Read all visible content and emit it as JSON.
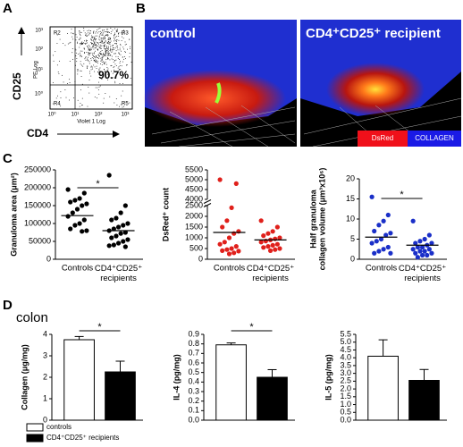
{
  "panel_labels": [
    "A",
    "B",
    "C",
    "D"
  ],
  "flow": {
    "y_marker": "CD25",
    "x_marker": "CD4",
    "y_axis": "PE Log",
    "x_axis": "Violet 1 Log",
    "ticks": [
      "10⁰",
      "10¹",
      "10²",
      "10³"
    ],
    "regions": [
      "R2",
      "R3",
      "R4",
      "R5"
    ],
    "percent": "90.7%"
  },
  "images": {
    "left": "control",
    "right": "CD4⁺CD25⁺ recipient",
    "legend": [
      "DsRed",
      "COLLAGEN"
    ]
  },
  "colon_label": "colon",
  "bar_legend": [
    {
      "name": "controls",
      "color": "#ffffff"
    },
    {
      "name": "CD4⁺CD25⁺ recipients",
      "color": "#000000"
    }
  ],
  "chart_data": [
    {
      "type": "strip",
      "y_label": [
        "Granuloma area (μm²)"
      ],
      "categories": [
        "Controls",
        "CD4⁺CD25⁺ recipients"
      ],
      "ylim": [
        0,
        250000
      ],
      "yticks": [
        0,
        50000,
        100000,
        150000,
        200000,
        250000
      ],
      "significance": "*",
      "series": [
        {
          "color": "#000000",
          "values": [
            195000,
            185000,
            170000,
            165000,
            160000,
            155000,
            150000,
            140000,
            130000,
            120000,
            110000,
            100000,
            95000,
            85000,
            80000,
            78000
          ],
          "mean": 122000
        },
        {
          "color": "#000000",
          "values": [
            235000,
            150000,
            130000,
            115000,
            110000,
            100000,
            95000,
            90000,
            85000,
            80000,
            75000,
            72000,
            65000,
            60000,
            55000,
            50000,
            45000,
            40000,
            38000,
            35000
          ],
          "mean": 80000
        }
      ]
    },
    {
      "type": "strip",
      "y_label": [
        "DsRed⁺ count"
      ],
      "categories": [
        "Controls",
        "CD4⁺CD25⁺ recipients"
      ],
      "ylim": [
        0,
        5500
      ],
      "ybreak": [
        2500,
        4000
      ],
      "yticks": [
        0,
        500,
        1000,
        1500,
        2000,
        2500,
        4000,
        4500,
        5000,
        5500
      ],
      "series": [
        {
          "color": "#e0201b",
          "values": [
            5000,
            4800,
            2400,
            1800,
            1500,
            1300,
            1200,
            1000,
            800,
            700,
            600,
            500,
            450,
            400,
            380,
            300,
            250
          ],
          "mean": 1250
        },
        {
          "color": "#e0201b",
          "values": [
            1800,
            1500,
            1300,
            1200,
            1100,
            1000,
            950,
            900,
            850,
            800,
            700,
            650,
            600,
            550,
            500,
            450,
            400
          ],
          "mean": 900
        }
      ]
    },
    {
      "type": "strip",
      "y_label": [
        "Half granuloma",
        "collagen volume (μm³x10⁶)"
      ],
      "categories": [
        "Controls",
        "CD4⁺CD25⁺ recipients"
      ],
      "ylim": [
        0,
        20
      ],
      "yticks": [
        0,
        5,
        10,
        15,
        20
      ],
      "significance": "*",
      "series": [
        {
          "color": "#1a2fc8",
          "values": [
            15.5,
            11,
            9.5,
            8.5,
            7,
            6.5,
            6,
            5,
            4.5,
            4,
            3,
            2.5,
            2,
            1.5,
            1.5
          ],
          "mean": 5.5
        },
        {
          "color": "#1a2fc8",
          "values": [
            9.5,
            6,
            5,
            4.5,
            4,
            4,
            3.5,
            3,
            3,
            2.5,
            2.5,
            2,
            2,
            1.5,
            1.5,
            1,
            1,
            0.5
          ],
          "mean": 3.5
        }
      ]
    },
    {
      "type": "bar",
      "y_label": [
        "Collagen (μg/mg)"
      ],
      "ylim": [
        0,
        4
      ],
      "yticks": [
        0,
        1,
        2,
        3,
        4
      ],
      "significance": "*",
      "values": [
        3.75,
        2.25
      ],
      "errors": [
        0.15,
        0.5
      ]
    },
    {
      "type": "bar",
      "y_label": [
        "IL-4 (pg/mg)"
      ],
      "ylim": [
        0,
        0.9
      ],
      "significance": "*",
      "yticks": [
        {
          "value": 0,
          "label": "0.0"
        },
        0.1,
        0.2,
        0.3,
        0.4,
        0.5,
        0.6,
        0.7,
        0.8,
        0.9
      ],
      "values": [
        0.79,
        0.45
      ],
      "errors": [
        0.02,
        0.08
      ]
    },
    {
      "type": "bar",
      "y_label": [
        "IL-5 (pg/mg)"
      ],
      "ylim": [
        0,
        5.5
      ],
      "yticks": [
        {
          "value": 0,
          "label": "0.0"
        },
        0.5,
        {
          "value": 1,
          "label": "1.0"
        },
        1.5,
        {
          "value": 2,
          "label": "2.0"
        },
        2.5,
        {
          "value": 3,
          "label": "3.0"
        },
        3.5,
        {
          "value": 4,
          "label": "4.0"
        },
        4.5,
        {
          "value": 5,
          "label": "5.0"
        },
        5.5
      ],
      "values": [
        4.1,
        2.55
      ],
      "errors": [
        1.05,
        0.7
      ]
    }
  ]
}
